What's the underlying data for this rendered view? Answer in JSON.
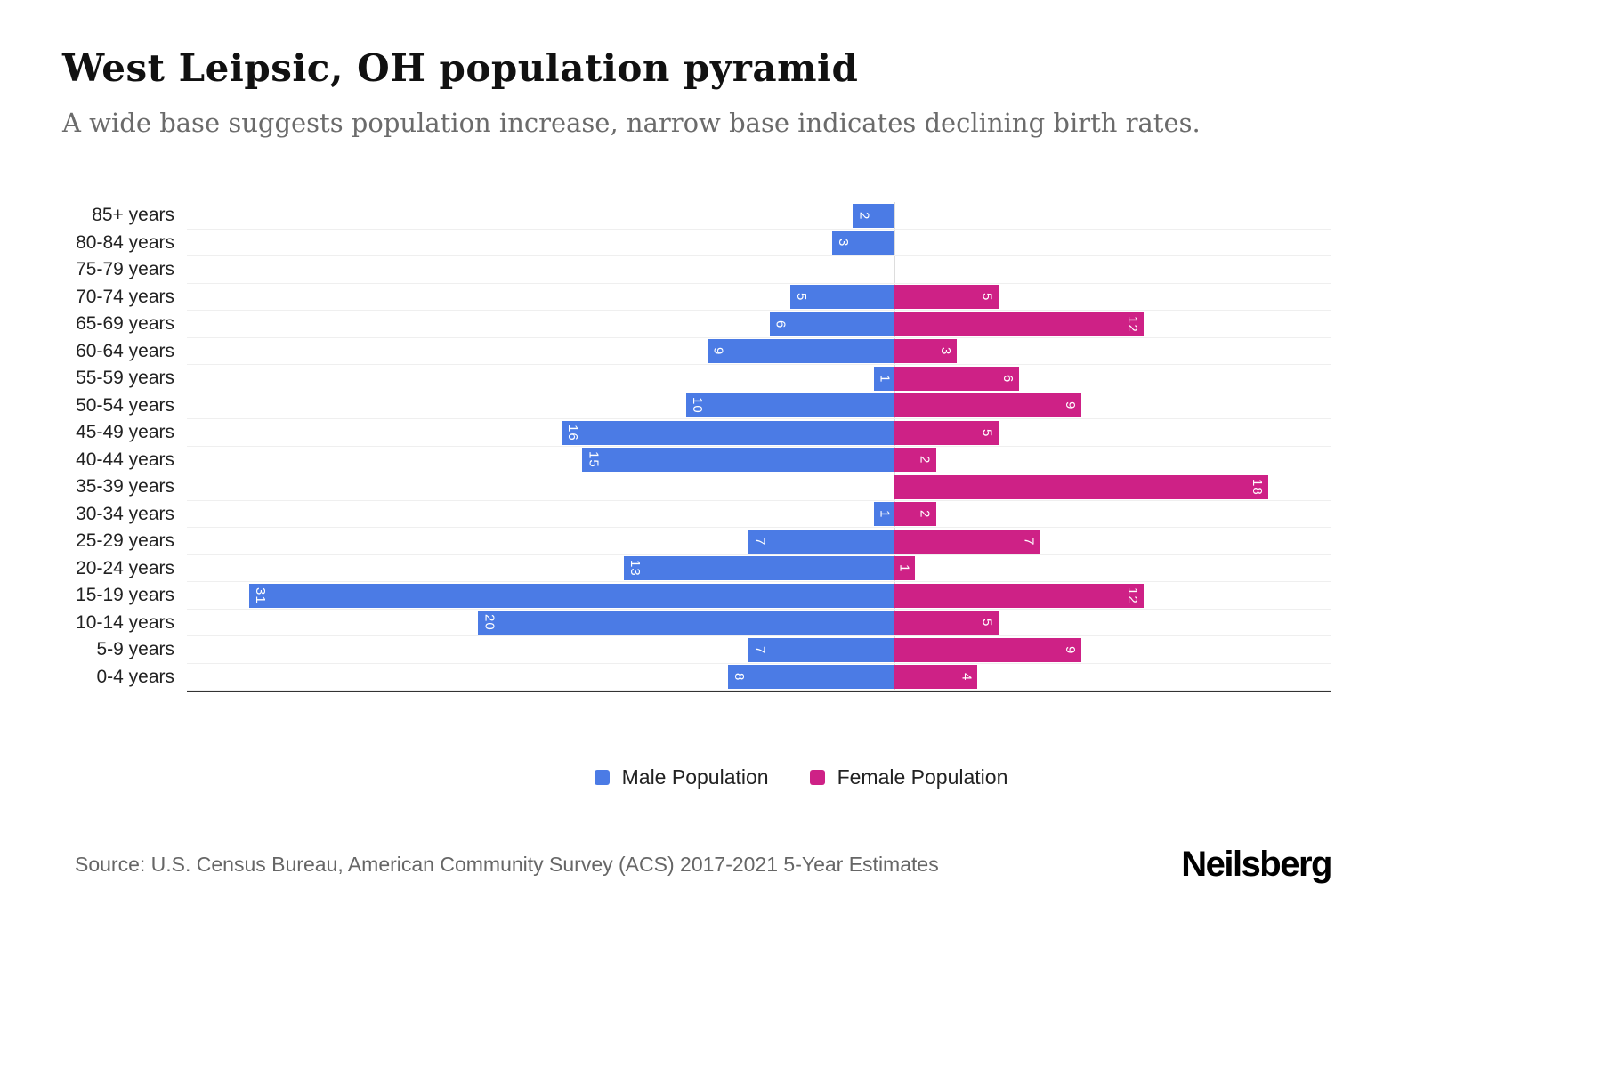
{
  "header": {
    "title": "West Leipsic, OH population pyramid",
    "subtitle": "A wide base suggests population increase, narrow base indicates declining birth rates."
  },
  "chart_data": {
    "type": "bar",
    "orientation": "horizontal-pyramid",
    "title": "West Leipsic, OH population pyramid",
    "categories": [
      "85+ years",
      "80-84 years",
      "75-79 years",
      "70-74 years",
      "65-69 years",
      "60-64 years",
      "55-59 years",
      "50-54 years",
      "45-49 years",
      "40-44 years",
      "35-39 years",
      "30-34 years",
      "25-29 years",
      "20-24 years",
      "15-19 years",
      "10-14 years",
      "5-9 years",
      "0-4 years"
    ],
    "series": [
      {
        "name": "Male Population",
        "side": "left",
        "color": "#4b7be5",
        "values": [
          2,
          3,
          0,
          5,
          6,
          9,
          1,
          10,
          16,
          15,
          0,
          1,
          7,
          13,
          31,
          20,
          7,
          8
        ]
      },
      {
        "name": "Female Population",
        "side": "right",
        "color": "#ce2186",
        "values": [
          0,
          0,
          0,
          5,
          12,
          3,
          6,
          9,
          5,
          2,
          18,
          2,
          7,
          1,
          12,
          5,
          9,
          4
        ]
      }
    ],
    "axis": {
      "male_max": 34,
      "female_max": 21
    },
    "grid": true,
    "legend_position": "bottom",
    "value_labels": "inside-bar-rotated"
  },
  "footer": {
    "source": "Source: U.S. Census Bureau, American Community Survey (ACS) 2017-2021 5-Year Estimates",
    "brand": "Neilsberg"
  },
  "colors": {
    "male": "#4b7be5",
    "female": "#ce2186"
  }
}
